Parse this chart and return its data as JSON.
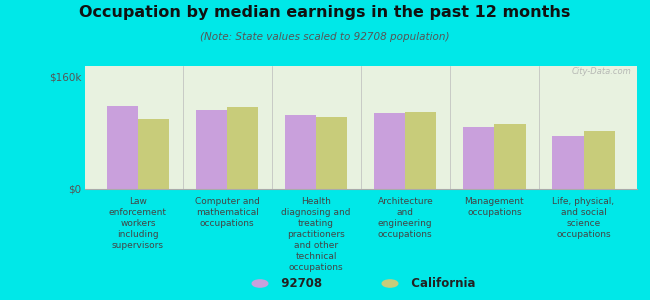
{
  "title": "Occupation by median earnings in the past 12 months",
  "subtitle": "(Note: State values scaled to 92708 population)",
  "background_color": "#00e8e8",
  "plot_bg_color": "#e8f2e0",
  "categories": [
    "Law\nenforcement\nworkers\nincluding\nsupervisors",
    "Computer and\nmathematical\noccupations",
    "Health\ndiagnosing and\ntreating\npractitioners\nand other\ntechnical\noccupations",
    "Architecture\nand\nengineering\noccupations",
    "Management\noccupations",
    "Life, physical,\nand social\nscience\noccupations"
  ],
  "values_92708": [
    118000,
    112000,
    105000,
    108000,
    88000,
    76000
  ],
  "values_california": [
    100000,
    117000,
    103000,
    110000,
    92000,
    83000
  ],
  "color_92708": "#c9a0dc",
  "color_california": "#c8cc7a",
  "ylim": [
    0,
    175000
  ],
  "ytick_labels": [
    "$0",
    "$160k"
  ],
  "ytick_values": [
    0,
    160000
  ],
  "legend_labels": [
    "92708",
    "California"
  ],
  "bar_width": 0.35,
  "watermark": "City-Data.com"
}
